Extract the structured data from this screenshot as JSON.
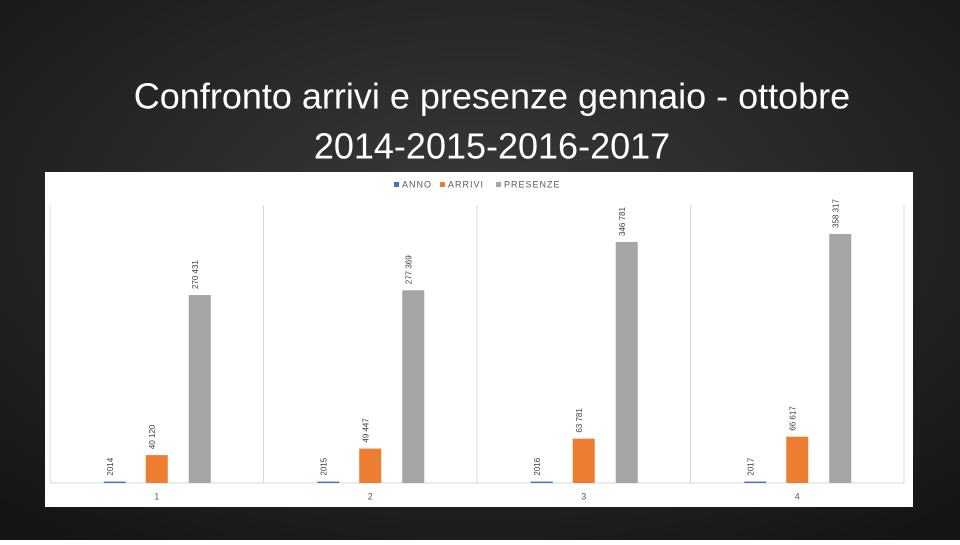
{
  "chart_data": {
    "type": "bar",
    "title": [
      "Confronto arrivi e presenze gennaio - ottobre",
      "2014-2015-2016-2017"
    ],
    "categories": [
      "1",
      "2",
      "3",
      "4"
    ],
    "series": [
      {
        "name": "ANNO",
        "color": "#4472c4",
        "values": [
          2014,
          2015,
          2016,
          2017
        ]
      },
      {
        "name": "ARRIVI",
        "color": "#ed7d31",
        "values": [
          40120,
          49447,
          63781,
          66617
        ],
        "value_labels": [
          "40 120",
          "49 447",
          "63 781",
          "66 617"
        ]
      },
      {
        "name": "PRESENZE",
        "color": "#a5a5a5",
        "values": [
          270431,
          277369,
          346781,
          358317
        ],
        "value_labels": [
          "270 431",
          "277 369",
          "346 781",
          "358 317"
        ]
      }
    ],
    "ylim": [
      0,
      400000
    ],
    "grid": true
  }
}
